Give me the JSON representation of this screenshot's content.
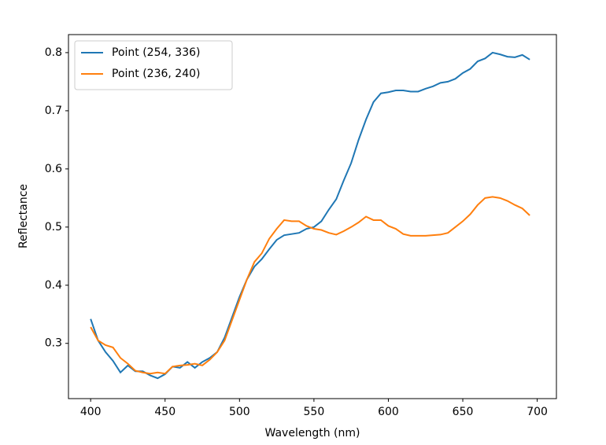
{
  "chart_data": {
    "type": "line",
    "xlabel": "Wavelength (nm)",
    "ylabel": "Reflectance",
    "x": [
      400,
      405,
      410,
      415,
      420,
      425,
      430,
      435,
      440,
      445,
      450,
      455,
      460,
      465,
      470,
      475,
      480,
      485,
      490,
      495,
      500,
      505,
      510,
      515,
      520,
      525,
      530,
      535,
      540,
      545,
      550,
      555,
      560,
      565,
      570,
      575,
      580,
      585,
      590,
      595,
      600,
      605,
      610,
      615,
      620,
      625,
      630,
      635,
      640,
      645,
      650,
      655,
      660,
      665,
      670,
      675,
      680,
      685,
      690,
      695
    ],
    "series": [
      {
        "name": "Point (254, 336)",
        "color": "#1f77b4",
        "values": [
          0.342,
          0.305,
          0.285,
          0.27,
          0.25,
          0.262,
          0.252,
          0.252,
          0.245,
          0.24,
          0.247,
          0.26,
          0.258,
          0.268,
          0.258,
          0.268,
          0.275,
          0.285,
          0.31,
          0.345,
          0.38,
          0.41,
          0.432,
          0.445,
          0.462,
          0.478,
          0.486,
          0.488,
          0.49,
          0.497,
          0.5,
          0.51,
          0.53,
          0.548,
          0.58,
          0.61,
          0.65,
          0.685,
          0.715,
          0.73,
          0.732,
          0.735,
          0.735,
          0.733,
          0.733,
          0.738,
          0.742,
          0.748,
          0.75,
          0.755,
          0.765,
          0.772,
          0.785,
          0.79,
          0.8,
          0.797,
          0.793,
          0.792,
          0.796,
          0.788
        ]
      },
      {
        "name": "Point (236, 240)",
        "color": "#ff7f0e",
        "values": [
          0.328,
          0.305,
          0.297,
          0.293,
          0.275,
          0.265,
          0.253,
          0.25,
          0.248,
          0.25,
          0.248,
          0.26,
          0.262,
          0.263,
          0.265,
          0.262,
          0.272,
          0.285,
          0.305,
          0.34,
          0.375,
          0.41,
          0.44,
          0.455,
          0.48,
          0.497,
          0.512,
          0.51,
          0.51,
          0.502,
          0.497,
          0.495,
          0.49,
          0.487,
          0.493,
          0.5,
          0.508,
          0.518,
          0.512,
          0.512,
          0.502,
          0.497,
          0.488,
          0.485,
          0.485,
          0.485,
          0.486,
          0.487,
          0.49,
          0.5,
          0.51,
          0.522,
          0.538,
          0.55,
          0.552,
          0.55,
          0.545,
          0.538,
          0.532,
          0.52
        ]
      }
    ],
    "xlim": [
      385.1,
      712.9
    ],
    "ylim": [
      0.205,
      0.831
    ],
    "xticks": [
      400,
      450,
      500,
      550,
      600,
      650,
      700
    ],
    "yticks": [
      0.3,
      0.4,
      0.5,
      0.6,
      0.7,
      0.8
    ],
    "legend": "upper left",
    "grid": false
  }
}
